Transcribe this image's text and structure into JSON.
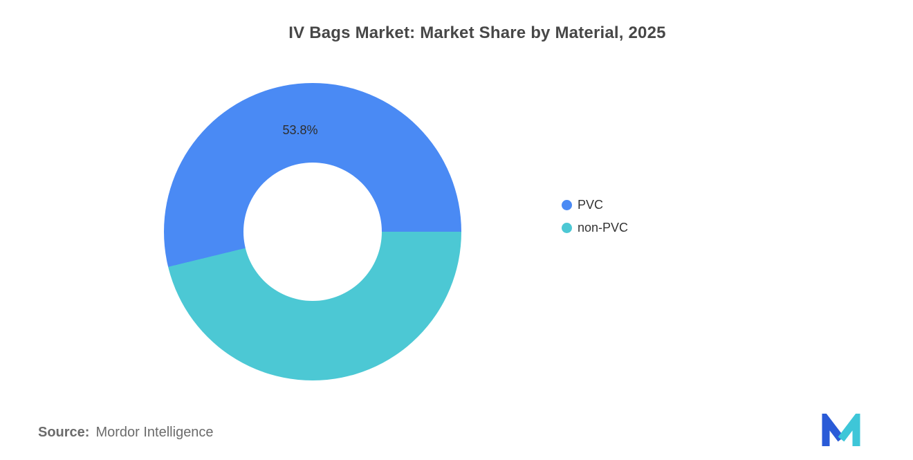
{
  "title": "IV Bags Market: Market Share by Material, 2025",
  "source": {
    "label": "Source:",
    "value": "Mordor Intelligence"
  },
  "brand": {
    "logo_blue": "#2A5BD7",
    "logo_teal": "#3EC6D8"
  },
  "chart_data": {
    "type": "pie",
    "subtype": "donut",
    "title": "IV Bags Market: Market Share by Material, 2025",
    "slices": [
      {
        "label": "PVC",
        "value": 53.8,
        "display": "53.8%",
        "color": "#4A8AF4"
      },
      {
        "label": "non-PVC",
        "value": 46.2,
        "display": "",
        "color": "#4CC8D4"
      }
    ],
    "hole_ratio": 0.465,
    "legend_position": "right",
    "orientation_note": "first slice ends at 3 o'clock; blue slice covers top of donut",
    "xlabel": "",
    "ylabel": ""
  }
}
